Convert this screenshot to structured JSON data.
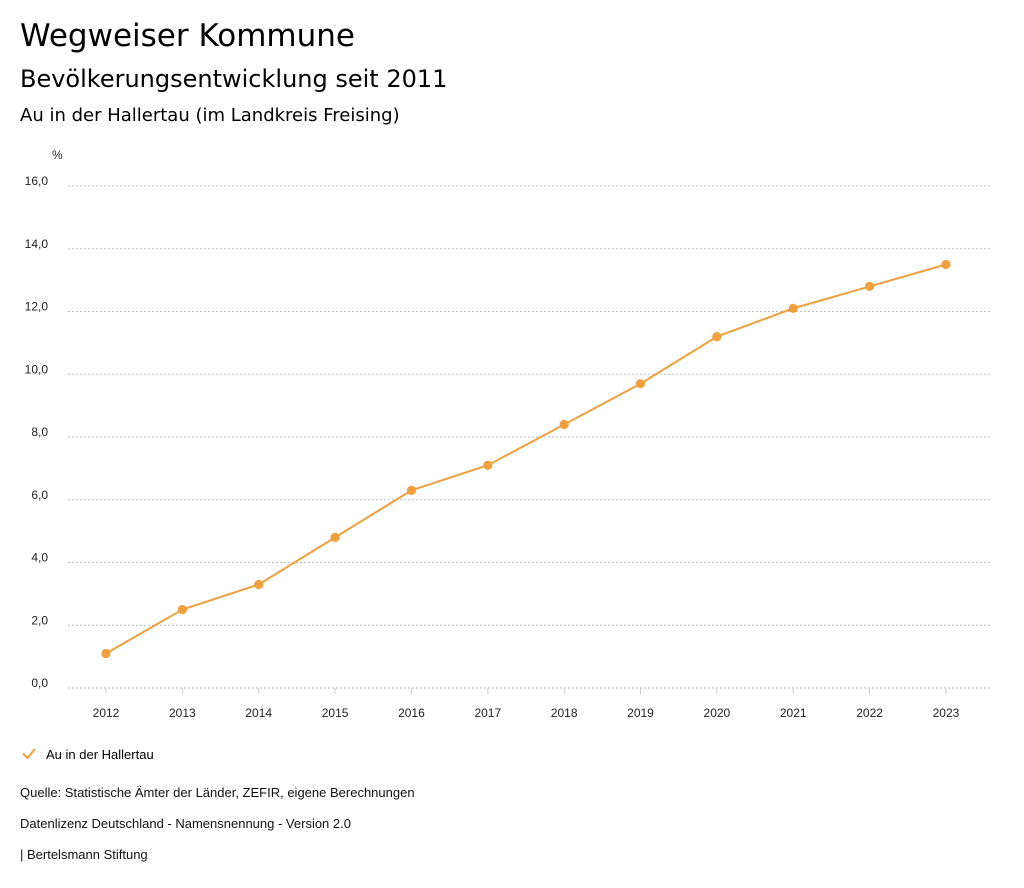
{
  "header": {
    "title": "Wegweiser Kommune",
    "subtitle": "Bevölkerungsentwicklung seit 2011",
    "region": "Au in der Hallertau (im Landkreis Freising)"
  },
  "chart_data": {
    "type": "line",
    "title": "Bevölkerungsentwicklung seit 2011",
    "ylabel": "%",
    "xlabel": "",
    "x": [
      2012,
      2013,
      2014,
      2015,
      2016,
      2017,
      2018,
      2019,
      2020,
      2021,
      2022,
      2023
    ],
    "series": [
      {
        "name": "Au in der Hallertau",
        "values": [
          1.1,
          2.5,
          3.3,
          4.8,
          6.3,
          7.1,
          8.4,
          9.7,
          11.2,
          12.1,
          12.8,
          13.5
        ],
        "color": "#f0a03c"
      }
    ],
    "ylim": [
      0,
      16
    ],
    "yticks": [
      "0,0",
      "2,0",
      "4,0",
      "6,0",
      "8,0",
      "10,0",
      "12,0",
      "14,0",
      "16,0"
    ],
    "grid": true,
    "legend_position": "bottom-left"
  },
  "legend": {
    "label": "Au in der Hallertau",
    "icon": "checkmark-icon"
  },
  "footer": {
    "source": "Quelle: Statistische Ämter der Länder, ZEFIR, eigene Berechnungen",
    "license": "Datenlizenz Deutschland - Namensnennung - Version 2.0",
    "organization": "| Bertelsmann Stiftung"
  },
  "colors": {
    "series": "#f0a03c",
    "grid": "#bdbdbd",
    "axis": "#cccccc"
  }
}
